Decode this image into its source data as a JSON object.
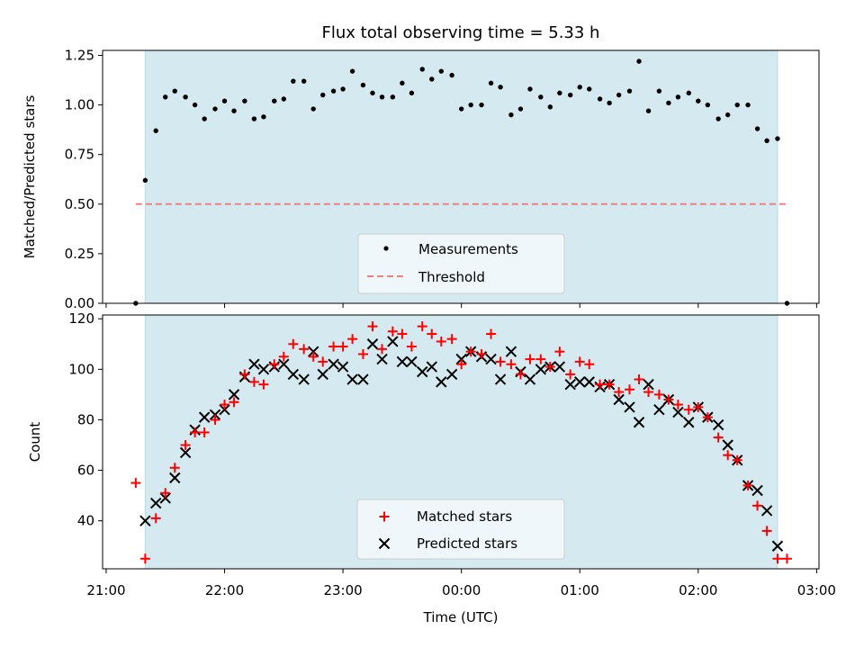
{
  "title": "Flux total observing time = 5.33 h",
  "x_axis": {
    "label": "Time (UTC)",
    "tick_labels": [
      "21:00",
      "22:00",
      "23:00",
      "00:00",
      "01:00",
      "02:00",
      "03:00"
    ],
    "ticks_h": [
      21,
      22,
      23,
      24,
      25,
      26,
      27
    ],
    "range_h": [
      20.97,
      27.02
    ]
  },
  "colors": {
    "observing_span": "#d4eaf0",
    "measurements": "#000000",
    "threshold": "#f08080",
    "matched": "#ff0000",
    "predicted": "#000000",
    "legend_bg": "#f5f9fb"
  },
  "observing_span_h": [
    21.33,
    26.67
  ],
  "chart_data": [
    {
      "type": "scatter",
      "ylabel": "Matched/Predicted stars",
      "ylim": [
        0,
        1.275
      ],
      "yticks": [
        0.0,
        0.25,
        0.5,
        0.75,
        1.0,
        1.25
      ],
      "ytick_labels": [
        "0.00",
        "0.25",
        "0.50",
        "0.75",
        "1.00",
        "1.25"
      ],
      "threshold": {
        "name": "Threshold",
        "value": 0.5,
        "x_range_h": [
          21.25,
          26.75
        ]
      },
      "series": [
        {
          "name": "Measurements",
          "x_h": [
            21.25,
            21.33,
            21.42,
            21.5,
            21.58,
            21.67,
            21.75,
            21.83,
            21.92,
            22.0,
            22.08,
            22.17,
            22.25,
            22.33,
            22.42,
            22.5,
            22.58,
            22.67,
            22.75,
            22.83,
            22.92,
            23.0,
            23.08,
            23.17,
            23.25,
            23.33,
            23.42,
            23.5,
            23.58,
            23.67,
            23.75,
            23.83,
            23.92,
            24.0,
            24.08,
            24.17,
            24.25,
            24.33,
            24.42,
            24.5,
            24.58,
            24.67,
            24.75,
            24.83,
            24.92,
            25.0,
            25.08,
            25.17,
            25.25,
            25.33,
            25.42,
            25.5,
            25.58,
            25.67,
            25.75,
            25.83,
            25.92,
            26.0,
            26.08,
            26.17,
            26.25,
            26.33,
            26.42,
            26.5,
            26.58,
            26.67,
            26.75
          ],
          "y": [
            0.0,
            0.62,
            0.87,
            1.04,
            1.07,
            1.04,
            1.0,
            0.93,
            0.98,
            1.02,
            0.97,
            1.02,
            0.93,
            0.94,
            1.02,
            1.03,
            1.12,
            1.12,
            0.98,
            1.05,
            1.07,
            1.08,
            1.17,
            1.1,
            1.06,
            1.04,
            1.04,
            1.11,
            1.06,
            1.18,
            1.13,
            1.17,
            1.15,
            0.98,
            1.0,
            1.0,
            1.11,
            1.09,
            0.95,
            0.98,
            1.08,
            1.04,
            0.99,
            1.06,
            1.05,
            1.09,
            1.08,
            1.03,
            1.01,
            1.05,
            1.07,
            1.22,
            0.97,
            1.07,
            1.01,
            1.04,
            1.06,
            1.02,
            1.0,
            0.93,
            0.95,
            1.0,
            1.0,
            0.88,
            0.82,
            0.83,
            0.0
          ]
        }
      ]
    },
    {
      "type": "scatter",
      "ylabel": "Count",
      "ylim": [
        21,
        121.5
      ],
      "yticks": [
        40,
        60,
        80,
        100,
        120
      ],
      "ytick_labels": [
        "40",
        "60",
        "80",
        "100",
        "120"
      ],
      "series": [
        {
          "name": "Matched stars",
          "x_h": [
            21.25,
            21.33,
            21.42,
            21.5,
            21.58,
            21.67,
            21.75,
            21.83,
            21.92,
            22.0,
            22.08,
            22.17,
            22.25,
            22.33,
            22.42,
            22.5,
            22.58,
            22.67,
            22.75,
            22.83,
            22.92,
            23.0,
            23.08,
            23.17,
            23.25,
            23.33,
            23.42,
            23.5,
            23.58,
            23.67,
            23.75,
            23.83,
            23.92,
            24.0,
            24.08,
            24.17,
            24.25,
            24.33,
            24.42,
            24.5,
            24.58,
            24.67,
            24.75,
            24.83,
            24.92,
            25.0,
            25.08,
            25.17,
            25.25,
            25.33,
            25.42,
            25.5,
            25.58,
            25.67,
            25.75,
            25.83,
            25.92,
            26.0,
            26.08,
            26.17,
            26.25,
            26.33,
            26.42,
            26.5,
            26.58,
            26.67,
            26.75
          ],
          "y": [
            55,
            25,
            41,
            51,
            61,
            70,
            75,
            75,
            80,
            86,
            87,
            98,
            95,
            94,
            102,
            105,
            110,
            108,
            105,
            103,
            109,
            109,
            112,
            106,
            117,
            108,
            115,
            114,
            109,
            117,
            114,
            111,
            112,
            102,
            107,
            106,
            114,
            103,
            102,
            98,
            104,
            104,
            101,
            107,
            98,
            103,
            102,
            94,
            94,
            91,
            92,
            96,
            91,
            90,
            88,
            86,
            84,
            85,
            81,
            73,
            66,
            64,
            54,
            46,
            36,
            25,
            25
          ]
        },
        {
          "name": "Predicted stars",
          "x_h": [
            21.33,
            21.42,
            21.5,
            21.58,
            21.67,
            21.75,
            21.83,
            21.92,
            22.0,
            22.08,
            22.17,
            22.25,
            22.33,
            22.42,
            22.5,
            22.58,
            22.67,
            22.75,
            22.83,
            22.92,
            23.0,
            23.08,
            23.17,
            23.25,
            23.33,
            23.42,
            23.5,
            23.58,
            23.67,
            23.75,
            23.83,
            23.92,
            24.0,
            24.08,
            24.17,
            24.25,
            24.33,
            24.42,
            24.5,
            24.58,
            24.67,
            24.75,
            24.83,
            24.92,
            25.0,
            25.08,
            25.17,
            25.25,
            25.33,
            25.42,
            25.5,
            25.58,
            25.67,
            25.75,
            25.83,
            25.92,
            26.0,
            26.08,
            26.17,
            26.25,
            26.33,
            26.42,
            26.5,
            26.58,
            26.67
          ],
          "y": [
            40,
            47,
            49,
            57,
            67,
            76,
            81,
            82,
            84,
            90,
            97,
            102,
            100,
            101,
            102,
            98,
            96,
            107,
            98,
            102,
            101,
            96,
            96,
            110,
            104,
            111,
            103,
            103,
            99,
            101,
            95,
            98,
            104,
            107,
            105,
            104,
            96,
            107,
            99,
            96,
            100,
            101,
            101,
            94,
            95,
            95,
            93,
            94,
            88,
            85,
            79,
            94,
            84,
            88,
            83,
            79,
            85,
            81,
            78,
            70,
            64,
            54,
            52,
            44,
            30
          ]
        }
      ]
    }
  ]
}
